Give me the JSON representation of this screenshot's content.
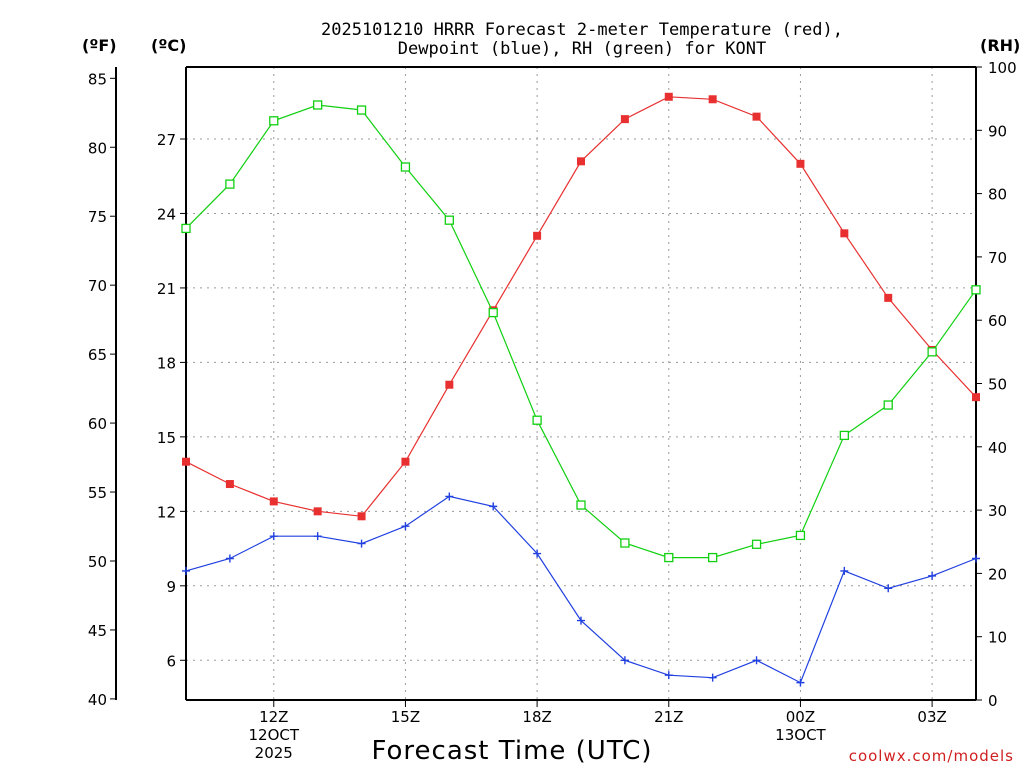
{
  "chart_data": {
    "type": "line",
    "title": [
      "2025101210 HRRR Forecast 2-meter Temperature (red),",
      "Dewpoint (blue), RH (green) for KONT"
    ],
    "xlabel": "Forecast Time (UTC)",
    "credit": "coolwx.com/models",
    "units": {
      "fahrenheit": "(ºF)",
      "celsius": "(ºC)",
      "rh": "(RH)"
    },
    "x_hours": [
      10,
      11,
      12,
      13,
      14,
      15,
      16,
      17,
      18,
      19,
      20,
      21,
      22,
      23,
      24,
      25,
      26,
      27,
      28
    ],
    "xlim": [
      10,
      28
    ],
    "x_ticks": [
      {
        "hour": 12,
        "lines": [
          "12Z",
          "12OCT",
          "2025"
        ]
      },
      {
        "hour": 15,
        "lines": [
          "15Z"
        ]
      },
      {
        "hour": 18,
        "lines": [
          "18Z"
        ]
      },
      {
        "hour": 21,
        "lines": [
          "21Z"
        ]
      },
      {
        "hour": 24,
        "lines": [
          "00Z",
          "13OCT"
        ]
      },
      {
        "hour": 27,
        "lines": [
          "03Z"
        ]
      }
    ],
    "celsius_axis": {
      "ylim": [
        4.4,
        29.9
      ],
      "ticks": [
        6,
        9,
        12,
        15,
        18,
        21,
        24,
        27
      ]
    },
    "fahrenheit_axis": {
      "ticks": [
        40,
        45,
        50,
        55,
        60,
        65,
        70,
        75,
        80,
        85
      ]
    },
    "rh_axis": {
      "ylim": [
        0,
        100
      ],
      "ticks": [
        0,
        10,
        20,
        30,
        40,
        50,
        60,
        70,
        80,
        90,
        100
      ]
    },
    "series": [
      {
        "name": "2-meter Temperature",
        "axis": "celsius",
        "color": "#e83030",
        "marker": "filled-square",
        "values": [
          14.0,
          13.1,
          12.4,
          12.0,
          11.8,
          14.0,
          17.1,
          20.1,
          23.1,
          26.1,
          27.8,
          28.7,
          28.6,
          27.9,
          26.0,
          23.2,
          20.6,
          18.5,
          16.6
        ]
      },
      {
        "name": "Dewpoint",
        "axis": "celsius",
        "color": "#2040e0",
        "marker": "plus",
        "values": [
          9.6,
          10.1,
          11.0,
          11.0,
          10.7,
          11.4,
          12.6,
          12.2,
          10.3,
          7.6,
          6.0,
          5.4,
          5.3,
          6.0,
          5.1,
          9.6,
          8.9,
          9.4,
          10.1
        ]
      },
      {
        "name": "RH",
        "axis": "rh",
        "color": "#10d010",
        "marker": "open-square",
        "values": [
          74.5,
          81.5,
          91.5,
          94.0,
          93.2,
          84.2,
          75.8,
          61.2,
          44.2,
          30.8,
          24.8,
          22.5,
          22.5,
          24.6,
          26.0,
          41.8,
          46.6,
          55.0,
          64.8
        ]
      }
    ]
  }
}
